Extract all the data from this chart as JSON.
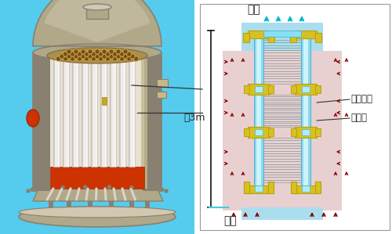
{
  "bg_color": "#ffffff",
  "left_bg": "#55ccee",
  "panel_bg": "#ffffff",
  "pink_bg": "#ddb8b8",
  "cyan_top_bg": "#aadeee",
  "yellow": "#d8c020",
  "yellow_edge": "#b8a010",
  "fiber_color": "#7090a0",
  "cyan_tube": "#88d8f0",
  "cyan_tube_edge": "#44aacc",
  "arr_red": "#880000",
  "arr_cyan": "#00bbcc",
  "dim_color": "#111111",
  "text_color": "#222222",
  "label_ro": "ろ液",
  "label_gen": "原液",
  "label_chuku": "中空糸膜",
  "label_shusui": "集水管",
  "label_yaku": "約3m",
  "panel_border": "#999999",
  "vessel_color": "#b0a888",
  "vessel_dark": "#888070",
  "vessel_light": "#d0c8b0",
  "interior_bg": "#e8e0d0",
  "tube_white": "#f0eeec",
  "tube_shadow": "#c0bcb8",
  "plate_color": "#a89050",
  "red_part": "#cc3300"
}
